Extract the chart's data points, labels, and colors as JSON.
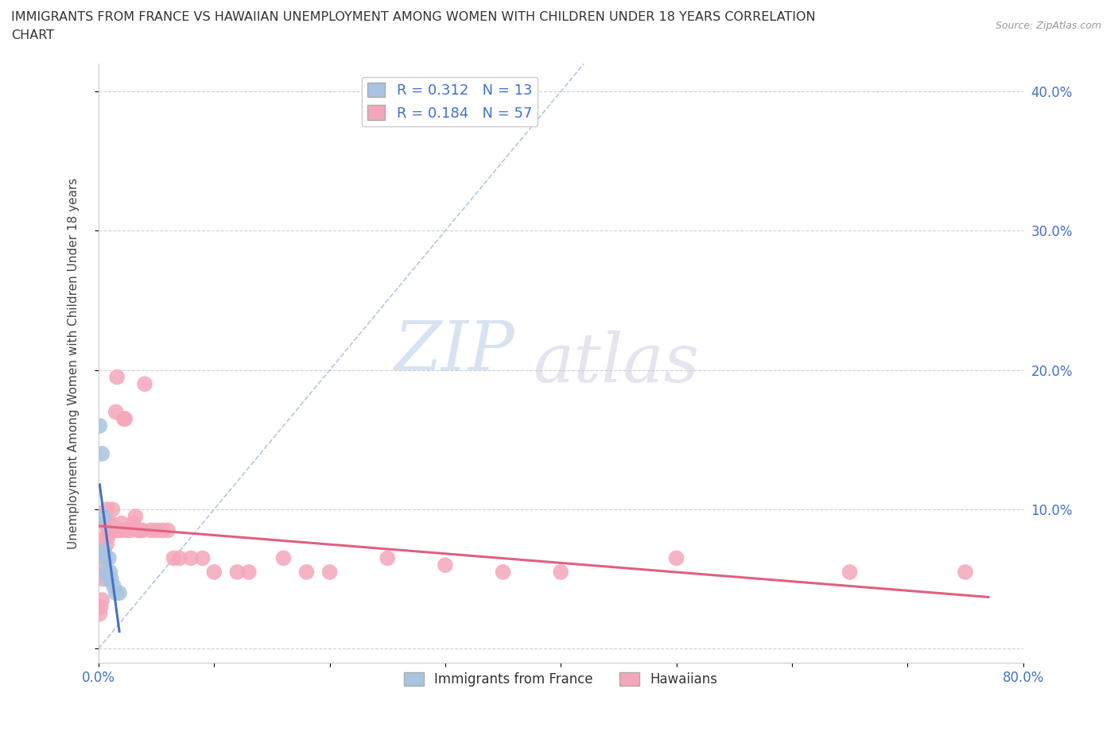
{
  "title_line1": "IMMIGRANTS FROM FRANCE VS HAWAIIAN UNEMPLOYMENT AMONG WOMEN WITH CHILDREN UNDER 18 YEARS CORRELATION",
  "title_line2": "CHART",
  "source": "Source: ZipAtlas.com",
  "ylabel": "Unemployment Among Women with Children Under 18 years",
  "france_color": "#a8c4e0",
  "hawaii_color": "#f4a7b9",
  "france_line_color": "#4472c4",
  "hawaii_line_color": "#e06080",
  "diagonal_color": "#b0c8e0",
  "R_france": 0.312,
  "N_france": 13,
  "R_hawaii": 0.184,
  "N_hawaii": 57,
  "france_x": [
    0.001,
    0.003,
    0.004,
    0.005,
    0.006,
    0.007,
    0.008,
    0.009,
    0.01,
    0.011,
    0.013,
    0.015,
    0.018
  ],
  "france_y": [
    0.16,
    0.14,
    0.095,
    0.07,
    0.065,
    0.055,
    0.05,
    0.065,
    0.055,
    0.05,
    0.045,
    0.04,
    0.04
  ],
  "hawaii_x": [
    0.001,
    0.002,
    0.003,
    0.004,
    0.004,
    0.005,
    0.005,
    0.006,
    0.006,
    0.007,
    0.007,
    0.008,
    0.008,
    0.009,
    0.009,
    0.01,
    0.011,
    0.012,
    0.013,
    0.014,
    0.015,
    0.016,
    0.017,
    0.018,
    0.02,
    0.021,
    0.022,
    0.023,
    0.025,
    0.027,
    0.03,
    0.032,
    0.034,
    0.036,
    0.038,
    0.04,
    0.045,
    0.05,
    0.055,
    0.06,
    0.065,
    0.07,
    0.08,
    0.09,
    0.1,
    0.12,
    0.13,
    0.16,
    0.18,
    0.2,
    0.25,
    0.3,
    0.35,
    0.4,
    0.5,
    0.65,
    0.75
  ],
  "hawaii_y": [
    0.025,
    0.03,
    0.035,
    0.05,
    0.06,
    0.09,
    0.07,
    0.09,
    0.08,
    0.1,
    0.075,
    0.085,
    0.08,
    0.085,
    0.09,
    0.085,
    0.09,
    0.1,
    0.085,
    0.085,
    0.17,
    0.195,
    0.085,
    0.085,
    0.09,
    0.085,
    0.165,
    0.165,
    0.085,
    0.085,
    0.09,
    0.095,
    0.085,
    0.085,
    0.085,
    0.19,
    0.085,
    0.085,
    0.085,
    0.085,
    0.065,
    0.065,
    0.065,
    0.065,
    0.055,
    0.055,
    0.055,
    0.065,
    0.055,
    0.055,
    0.065,
    0.06,
    0.055,
    0.055,
    0.065,
    0.055,
    0.055
  ],
  "watermark_zip": "ZIP",
  "watermark_atlas": "atlas",
  "background_color": "#ffffff",
  "grid_color": "#d0d0d0",
  "xlim": [
    0.0,
    0.8
  ],
  "ylim": [
    -0.01,
    0.42
  ],
  "xtick_pos": [
    0.0,
    0.1,
    0.2,
    0.3,
    0.4,
    0.5,
    0.6,
    0.7,
    0.8
  ],
  "ytick_pos": [
    0.0,
    0.1,
    0.2,
    0.3,
    0.4
  ],
  "xtick_labels": [
    "0.0%",
    "",
    "",
    "",
    "",
    "",
    "",
    "",
    "80.0%"
  ],
  "ytick_labels_right": [
    "",
    "10.0%",
    "20.0%",
    "30.0%",
    "40.0%"
  ]
}
